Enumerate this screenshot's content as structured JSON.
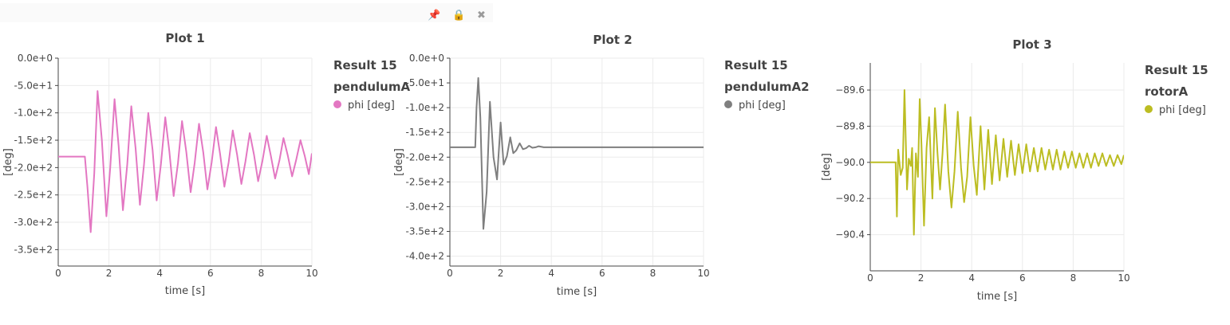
{
  "toolbar": {
    "icons": [
      "pin-icon",
      "lock-icon",
      "close-icon"
    ]
  },
  "chart_data": [
    {
      "type": "line",
      "title": "Plot 1",
      "xlabel": "time [s]",
      "ylabel": "[deg]",
      "xlim": [
        0,
        10
      ],
      "ylim": [
        -380,
        0
      ],
      "x_ticks": [
        "0",
        "2",
        "4",
        "6",
        "8",
        "10"
      ],
      "y_ticks": [
        "0.0e+0",
        "-5.0e+1",
        "-1.0e+2",
        "-1.5e+2",
        "-2.0e+2",
        "-2.5e+2",
        "-3.0e+2",
        "-3.5e+2"
      ],
      "legend": {
        "title_line1": "Result 15",
        "title_line2": "pendulumA"
      },
      "series": [
        {
          "name": "phi [deg]",
          "color": "#e377c2",
          "x": [
            0,
            1.05,
            1.15,
            1.28,
            1.42,
            1.55,
            1.72,
            1.9,
            2.05,
            2.22,
            2.38,
            2.55,
            2.72,
            2.88,
            3.05,
            3.22,
            3.38,
            3.55,
            3.72,
            3.88,
            4.05,
            4.22,
            4.38,
            4.55,
            4.72,
            4.88,
            5.05,
            5.22,
            5.38,
            5.55,
            5.72,
            5.88,
            6.05,
            6.22,
            6.38,
            6.55,
            6.72,
            6.88,
            7.05,
            7.22,
            7.38,
            7.55,
            7.72,
            7.88,
            8.05,
            8.22,
            8.38,
            8.55,
            8.72,
            8.88,
            9.05,
            9.22,
            9.38,
            9.55,
            9.72,
            9.88,
            10
          ],
          "y": [
            -180,
            -180,
            -235,
            -318,
            -210,
            -60,
            -150,
            -289,
            -200,
            -75,
            -160,
            -278,
            -195,
            -88,
            -165,
            -268,
            -195,
            -100,
            -168,
            -260,
            -193,
            -108,
            -170,
            -252,
            -192,
            -115,
            -172,
            -245,
            -191,
            -120,
            -173,
            -240,
            -190,
            -126,
            -175,
            -235,
            -190,
            -132,
            -176,
            -230,
            -189,
            -137,
            -177,
            -225,
            -188,
            -142,
            -178,
            -220,
            -187,
            -146,
            -178,
            -216,
            -186,
            -150,
            -179,
            -212,
            -174
          ]
        }
      ]
    },
    {
      "type": "line",
      "title": "Plot 2",
      "xlabel": "time [s]",
      "ylabel": "[deg]",
      "xlim": [
        0,
        10
      ],
      "ylim": [
        -420,
        0
      ],
      "x_ticks": [
        "0",
        "2",
        "4",
        "6",
        "8",
        "10"
      ],
      "y_ticks": [
        "0.0e+0",
        "-5.0e+1",
        "-1.0e+2",
        "-1.5e+2",
        "-2.0e+2",
        "-2.5e+2",
        "-3.0e+2",
        "-3.5e+2",
        "-4.0e+2"
      ],
      "legend": {
        "title_line1": "Result 15",
        "title_line2": "pendulumA2"
      },
      "series": [
        {
          "name": "phi [deg]",
          "color": "#7f7f7f",
          "x": [
            0,
            1.0,
            1.05,
            1.12,
            1.2,
            1.32,
            1.45,
            1.58,
            1.72,
            1.86,
            2.0,
            2.12,
            2.25,
            2.38,
            2.5,
            2.62,
            2.75,
            2.88,
            3.0,
            3.12,
            3.25,
            3.38,
            3.5,
            3.7,
            4.0,
            10
          ],
          "y": [
            -180,
            -180,
            -100,
            -40,
            -120,
            -345,
            -270,
            -88,
            -200,
            -245,
            -130,
            -215,
            -198,
            -160,
            -192,
            -186,
            -172,
            -184,
            -182,
            -177,
            -181,
            -180,
            -178,
            -180,
            -180,
            -180
          ]
        }
      ]
    },
    {
      "type": "line",
      "title": "Plot 3",
      "xlabel": "time [s]",
      "ylabel": "[deg]",
      "xlim": [
        0,
        10
      ],
      "ylim": [
        -90.6,
        -89.45
      ],
      "x_ticks": [
        "0",
        "2",
        "4",
        "6",
        "8",
        "10"
      ],
      "y_ticks": [
        "−89.6",
        "−89.8",
        "−90.0",
        "−90.2",
        "−90.4"
      ],
      "legend": {
        "title_line1": "Result 15",
        "title_line2": "rotorA"
      },
      "series": [
        {
          "name": "phi [deg]",
          "color": "#bcbd22",
          "x": [
            0,
            1.0,
            1.05,
            1.1,
            1.2,
            1.28,
            1.35,
            1.45,
            1.52,
            1.6,
            1.65,
            1.72,
            1.8,
            1.88,
            1.95,
            2.02,
            2.12,
            2.22,
            2.32,
            2.45,
            2.55,
            2.65,
            2.75,
            2.85,
            2.95,
            3.08,
            3.2,
            3.32,
            3.45,
            3.58,
            3.7,
            3.82,
            3.95,
            4.08,
            4.2,
            4.35,
            4.5,
            4.65,
            4.8,
            4.95,
            5.1,
            5.25,
            5.4,
            5.55,
            5.7,
            5.85,
            6.0,
            6.15,
            6.3,
            6.45,
            6.6,
            6.75,
            6.9,
            7.05,
            7.2,
            7.35,
            7.5,
            7.65,
            7.8,
            7.95,
            8.1,
            8.25,
            8.4,
            8.55,
            8.7,
            8.85,
            9.0,
            9.15,
            9.3,
            9.45,
            9.6,
            9.75,
            9.9,
            10
          ],
          "y": [
            -90.0,
            -90.0,
            -90.3,
            -89.93,
            -90.07,
            -90.03,
            -89.6,
            -90.15,
            -89.98,
            -90.02,
            -89.92,
            -90.4,
            -89.95,
            -90.08,
            -89.65,
            -89.9,
            -90.35,
            -89.92,
            -89.75,
            -90.2,
            -89.7,
            -89.95,
            -90.15,
            -89.95,
            -89.68,
            -90.05,
            -90.25,
            -90.05,
            -89.72,
            -90.03,
            -90.22,
            -90.08,
            -89.75,
            -90.02,
            -90.18,
            -89.8,
            -90.15,
            -89.82,
            -90.12,
            -89.85,
            -90.1,
            -89.87,
            -90.08,
            -89.88,
            -90.07,
            -89.9,
            -90.06,
            -89.9,
            -90.05,
            -89.92,
            -90.05,
            -89.92,
            -90.04,
            -89.93,
            -90.04,
            -89.93,
            -90.04,
            -89.94,
            -90.03,
            -89.94,
            -90.03,
            -89.95,
            -90.03,
            -89.95,
            -90.03,
            -89.95,
            -90.02,
            -89.95,
            -90.02,
            -89.96,
            -90.02,
            -89.96,
            -90.01,
            -89.96
          ]
        }
      ]
    }
  ]
}
